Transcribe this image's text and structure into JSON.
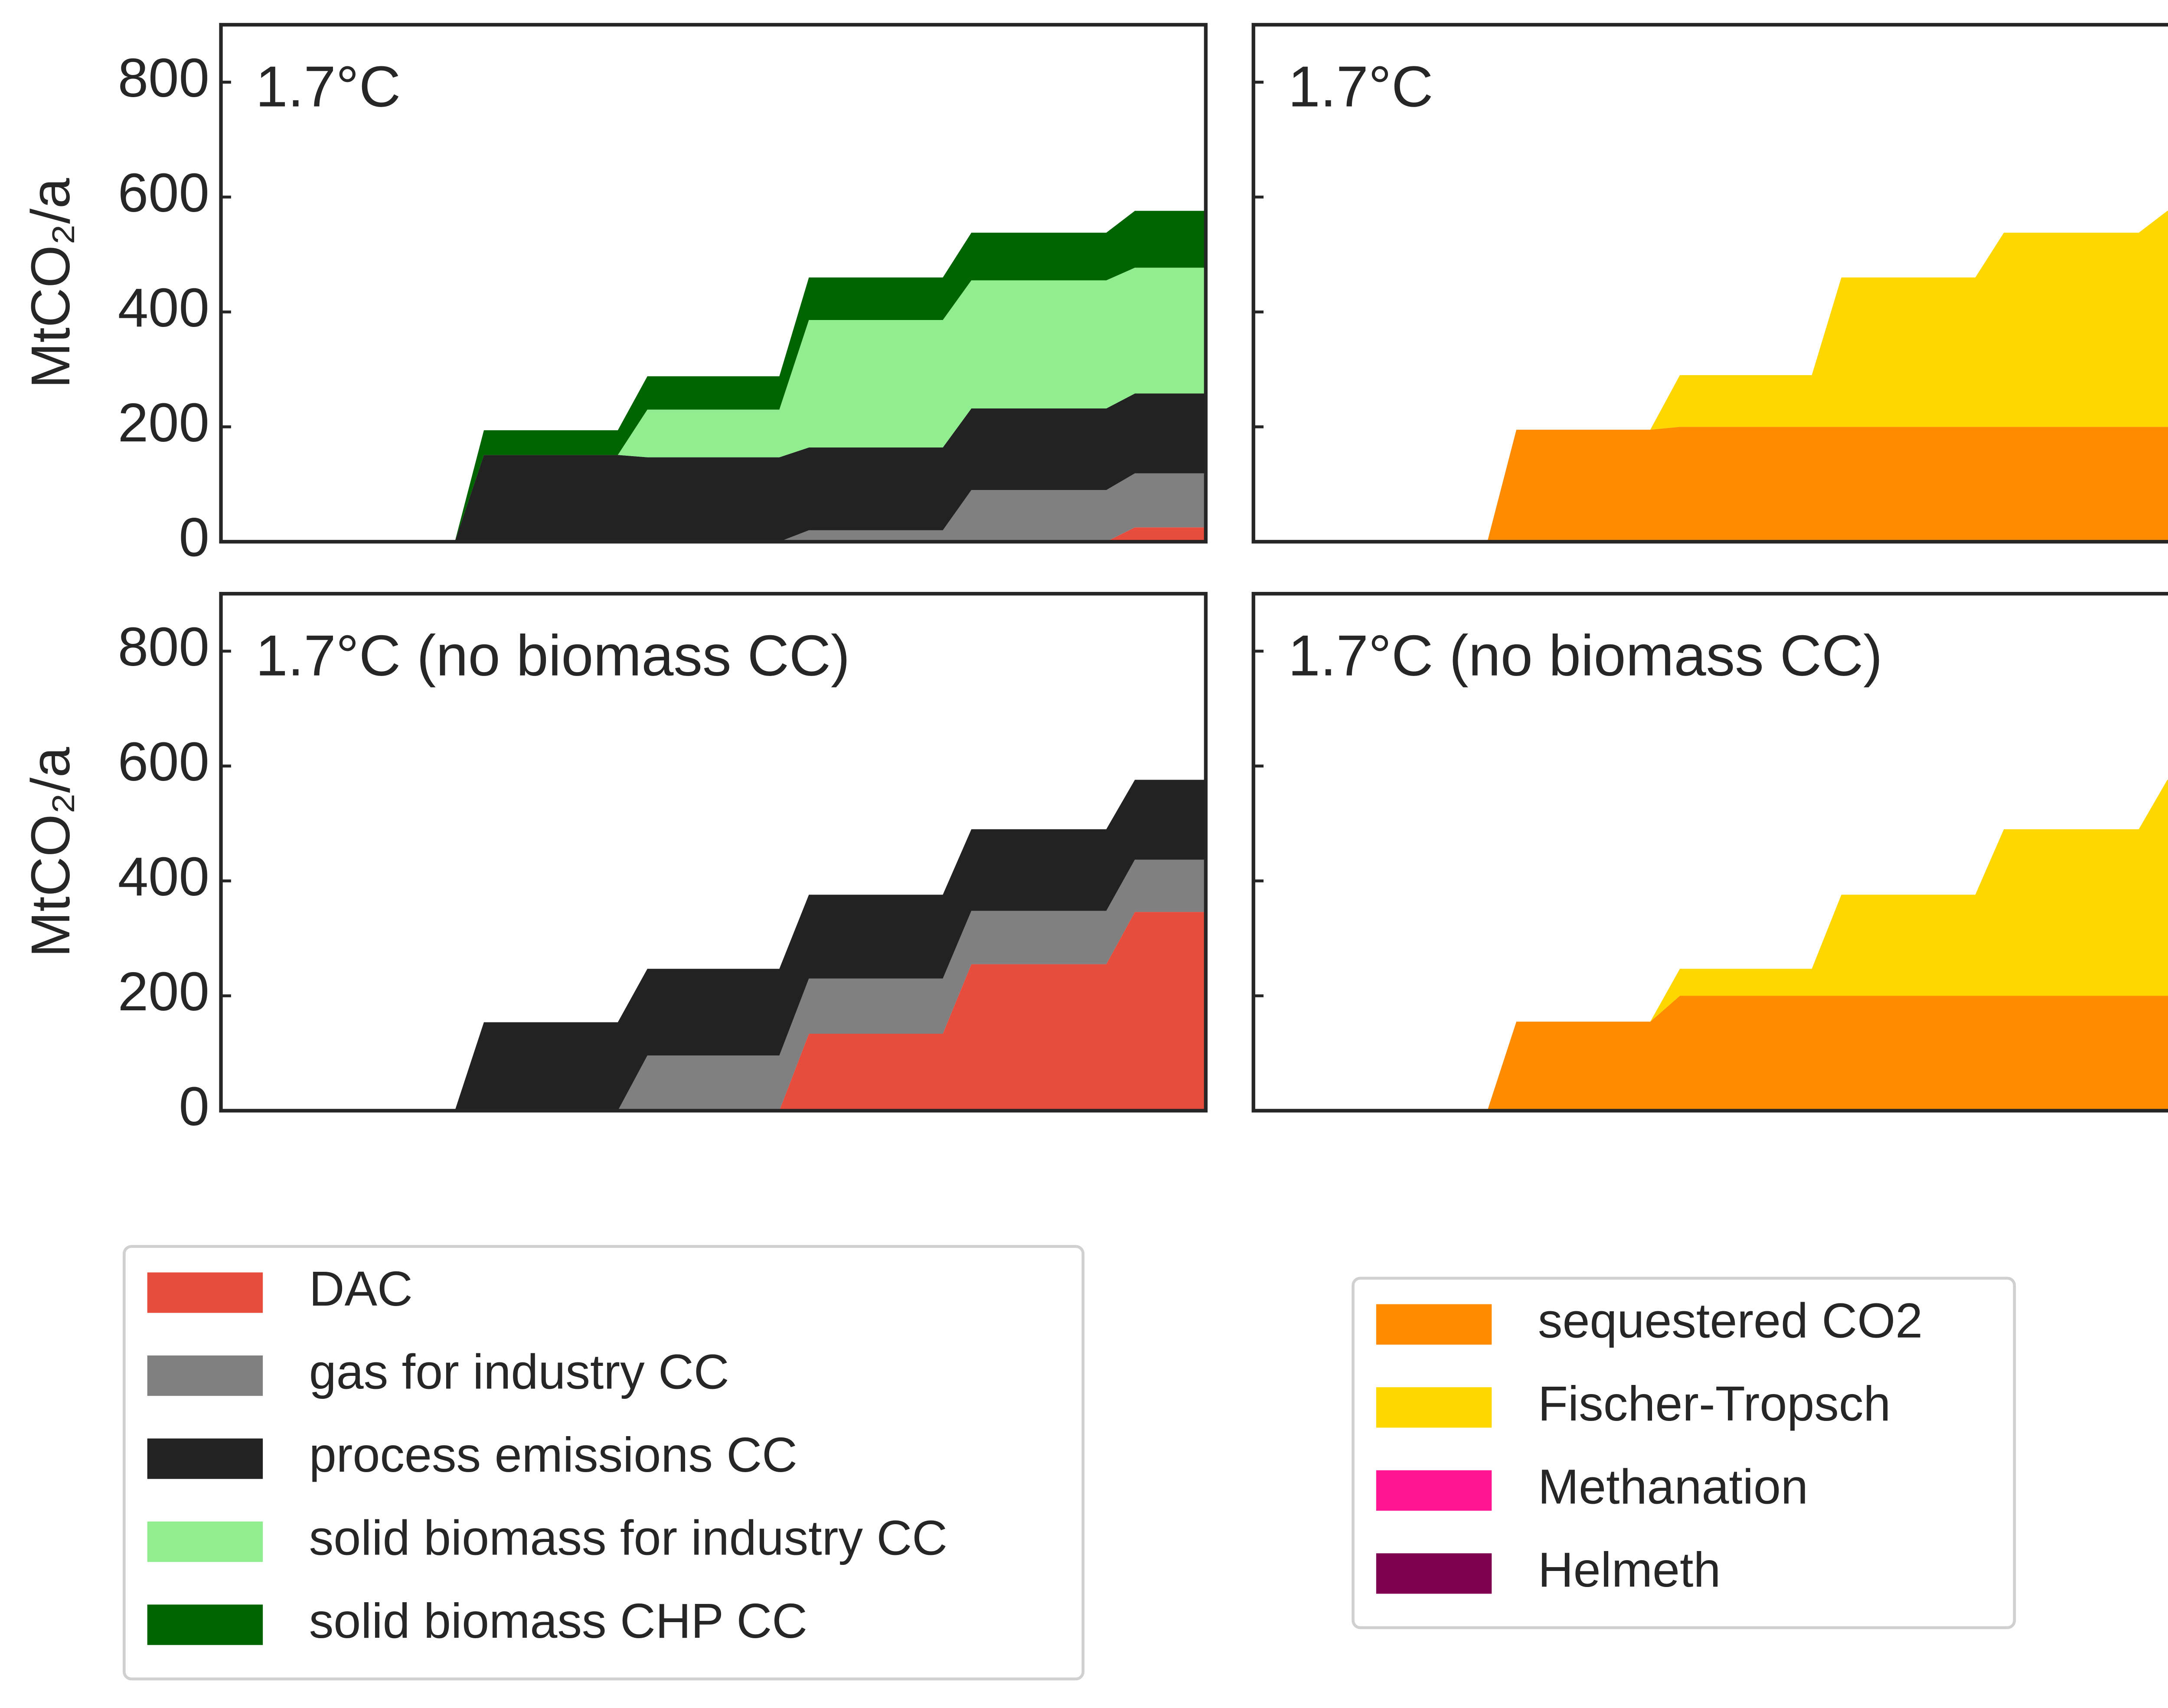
{
  "chart_data": [
    {
      "type": "stacked_area",
      "title": "1.7°C",
      "ylabel": "MtCO₂/a",
      "show_ytick_labels": true,
      "x": [
        0,
        23.75,
        26.7,
        40.3,
        43.3,
        56.7,
        59.7,
        73.3,
        76.2,
        89.9,
        92.8,
        100
      ],
      "xlim": [
        0,
        100
      ],
      "ylim": [
        0,
        900
      ],
      "yticks": [
        0,
        200,
        400,
        600,
        800
      ],
      "series": [
        {
          "name": "DAC",
          "color": "#e74c3c",
          "values": [
            0,
            0,
            0,
            0,
            0,
            0,
            0,
            0,
            0,
            0,
            25,
            25
          ]
        },
        {
          "name": "gas for industry CC",
          "color": "#808080",
          "values": [
            0,
            0,
            0,
            0,
            0,
            0,
            20,
            20,
            90,
            90,
            94,
            94
          ]
        },
        {
          "name": "process emissions CC",
          "color": "#222222",
          "values": [
            0,
            0,
            151,
            151,
            147,
            147,
            144,
            144,
            142,
            142,
            139,
            139
          ]
        },
        {
          "name": "solid biomass for industry CC",
          "color": "#90ee90",
          "values": [
            0,
            0,
            0,
            0,
            83,
            83,
            222,
            222,
            223,
            223,
            219,
            219
          ]
        },
        {
          "name": "solid biomass CHP CC",
          "color": "#006400",
          "values": [
            0,
            0,
            43,
            43,
            58,
            58,
            74,
            74,
            83,
            83,
            99,
            99
          ]
        }
      ]
    },
    {
      "type": "stacked_area",
      "title": "1.7°C",
      "show_ytick_labels": false,
      "x": [
        0,
        23.75,
        26.7,
        40.3,
        43.3,
        56.7,
        59.7,
        73.3,
        76.2,
        89.9,
        92.8,
        100
      ],
      "xlim": [
        0,
        100
      ],
      "ylim": [
        0,
        900
      ],
      "yticks": [
        0,
        200,
        400,
        600,
        800
      ],
      "series": [
        {
          "name": "sequestered CO2",
          "color": "#ff8c00",
          "values": [
            0,
            0,
            195,
            195,
            200,
            200,
            200,
            200,
            200,
            200,
            200,
            200
          ]
        },
        {
          "name": "Fischer-Tropsch",
          "color": "#ffd700",
          "values": [
            0,
            0,
            0,
            0,
            90,
            90,
            260,
            260,
            338,
            338,
            376,
            376
          ]
        },
        {
          "name": "Methanation",
          "color": "#ff1493",
          "values": [
            0,
            0,
            0,
            0,
            0,
            0,
            0,
            0,
            0,
            0,
            0,
            0
          ]
        },
        {
          "name": "Helmeth",
          "color": "#800050",
          "values": [
            0,
            0,
            0,
            0,
            0,
            0,
            0,
            0,
            0,
            0,
            0,
            0
          ]
        }
      ]
    },
    {
      "type": "stacked_area",
      "title": "1.7°C (no biomass CC)",
      "ylabel": "MtCO₂/a",
      "show_ytick_labels": true,
      "legend": "below",
      "x": [
        0,
        23.75,
        26.7,
        40.3,
        43.3,
        56.7,
        59.7,
        73.3,
        76.2,
        89.9,
        92.8,
        100
      ],
      "xlim": [
        0,
        100
      ],
      "ylim": [
        0,
        900
      ],
      "yticks": [
        0,
        200,
        400,
        600,
        800
      ],
      "series": [
        {
          "name": "DAC",
          "color": "#e74c3c",
          "values": [
            0,
            0,
            0,
            0,
            0,
            0,
            134,
            134,
            255,
            255,
            346,
            346
          ]
        },
        {
          "name": "gas for industry CC",
          "color": "#808080",
          "values": [
            0,
            0,
            0,
            0,
            96,
            96,
            96,
            96,
            93,
            93,
            91,
            91
          ]
        },
        {
          "name": "process emissions CC",
          "color": "#222222",
          "values": [
            0,
            0,
            154,
            154,
            151,
            151,
            146,
            146,
            142,
            142,
            139,
            139
          ]
        },
        {
          "name": "solid biomass for industry CC",
          "color": "#90ee90",
          "values": [
            0,
            0,
            0,
            0,
            0,
            0,
            0,
            0,
            0,
            0,
            0,
            0
          ]
        },
        {
          "name": "solid biomass CHP CC",
          "color": "#006400",
          "values": [
            0,
            0,
            0,
            0,
            0,
            0,
            0,
            0,
            0,
            0,
            0,
            0
          ]
        }
      ]
    },
    {
      "type": "stacked_area",
      "title": "1.7°C (no biomass CC)",
      "show_ytick_labels": false,
      "legend": "below",
      "x": [
        0,
        23.75,
        26.7,
        40.3,
        43.3,
        56.7,
        59.7,
        73.3,
        76.2,
        89.9,
        92.8,
        100
      ],
      "xlim": [
        0,
        100
      ],
      "ylim": [
        0,
        900
      ],
      "yticks": [
        0,
        200,
        400,
        600,
        800
      ],
      "series": [
        {
          "name": "sequestered CO2",
          "color": "#ff8c00",
          "values": [
            0,
            0,
            155,
            155,
            200,
            200,
            200,
            200,
            200,
            200,
            200,
            200
          ]
        },
        {
          "name": "Fischer-Tropsch",
          "color": "#ffd700",
          "values": [
            0,
            0,
            0,
            0,
            47,
            47,
            176,
            176,
            290,
            290,
            376,
            376
          ]
        },
        {
          "name": "Methanation",
          "color": "#ff1493",
          "values": [
            0,
            0,
            0,
            0,
            0,
            0,
            0,
            0,
            0,
            0,
            0,
            0
          ]
        },
        {
          "name": "Helmeth",
          "color": "#800050",
          "values": [
            0,
            0,
            0,
            0,
            0,
            0,
            0,
            0,
            0,
            0,
            0,
            0
          ]
        }
      ]
    }
  ]
}
